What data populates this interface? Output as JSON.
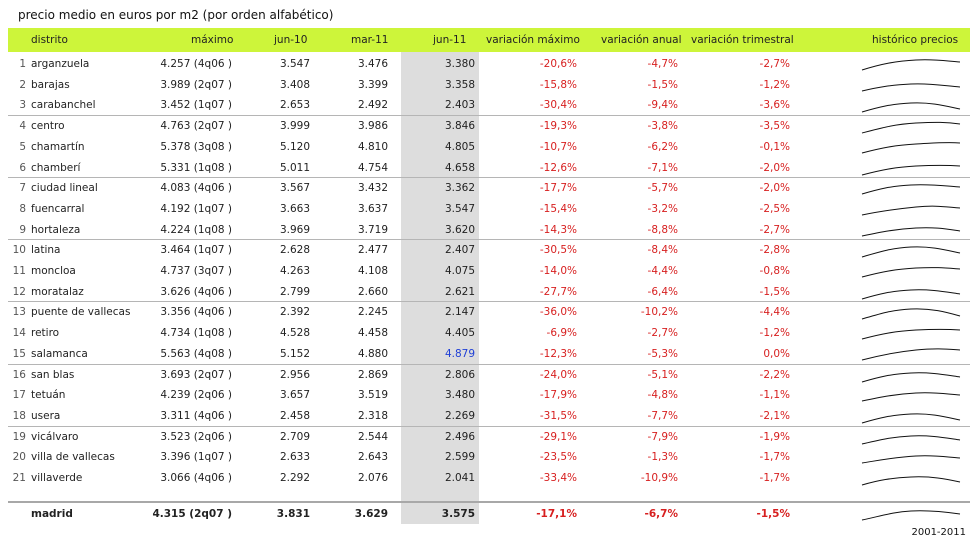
{
  "title": "precio medio en euros por m2 (por orden alfabético)",
  "header": {
    "distrito": "distrito",
    "maximo": "máximo",
    "jun10": "jun-10",
    "mar11": "mar-11",
    "jun11": "jun-11",
    "var_max": "variación máximo",
    "var_anual": "variación anual",
    "var_trim": "variación trimestral",
    "historico": "histórico precios"
  },
  "colors": {
    "header_bg": "#cdf53a",
    "negative": "#d71f1f",
    "highlight": "#1f3fd6",
    "band": "#dddddd"
  },
  "rows": [
    {
      "idx": "1",
      "name": "arganzuela",
      "max": "4.257 (4q06 )",
      "jun10": "3.547",
      "mar11": "3.476",
      "jun11": "3.380",
      "vmax": "-20,6%",
      "vanual": "-4,7%",
      "vtrim": "-2,7%"
    },
    {
      "idx": "2",
      "name": "barajas",
      "max": "3.989 (2q07 )",
      "jun10": "3.408",
      "mar11": "3.399",
      "jun11": "3.358",
      "vmax": "-15,8%",
      "vanual": "-1,5%",
      "vtrim": "-1,2%"
    },
    {
      "idx": "3",
      "name": "carabanchel",
      "max": "3.452 (1q07 )",
      "jun10": "2.653",
      "mar11": "2.492",
      "jun11": "2.403",
      "vmax": "-30,4%",
      "vanual": "-9,4%",
      "vtrim": "-3,6%"
    },
    {
      "idx": "4",
      "name": "centro",
      "max": "4.763 (2q07 )",
      "jun10": "3.999",
      "mar11": "3.986",
      "jun11": "3.846",
      "vmax": "-19,3%",
      "vanual": "-3,8%",
      "vtrim": "-3,5%"
    },
    {
      "idx": "5",
      "name": "chamartín",
      "max": "5.378 (3q08 )",
      "jun10": "5.120",
      "mar11": "4.810",
      "jun11": "4.805",
      "vmax": "-10,7%",
      "vanual": "-6,2%",
      "vtrim": "-0,1%"
    },
    {
      "idx": "6",
      "name": "chamberí",
      "max": "5.331 (1q08 )",
      "jun10": "5.011",
      "mar11": "4.754",
      "jun11": "4.658",
      "vmax": "-12,6%",
      "vanual": "-7,1%",
      "vtrim": "-2,0%"
    },
    {
      "idx": "7",
      "name": "ciudad lineal",
      "max": "4.083 (4q06 )",
      "jun10": "3.567",
      "mar11": "3.432",
      "jun11": "3.362",
      "vmax": "-17,7%",
      "vanual": "-5,7%",
      "vtrim": "-2,0%"
    },
    {
      "idx": "8",
      "name": "fuencarral",
      "max": "4.192 (1q07 )",
      "jun10": "3.663",
      "mar11": "3.637",
      "jun11": "3.547",
      "vmax": "-15,4%",
      "vanual": "-3,2%",
      "vtrim": "-2,5%"
    },
    {
      "idx": "9",
      "name": "hortaleza",
      "max": "4.224 (1q08 )",
      "jun10": "3.969",
      "mar11": "3.719",
      "jun11": "3.620",
      "vmax": "-14,3%",
      "vanual": "-8,8%",
      "vtrim": "-2,7%"
    },
    {
      "idx": "10",
      "name": "latina",
      "max": "3.464 (1q07 )",
      "jun10": "2.628",
      "mar11": "2.477",
      "jun11": "2.407",
      "vmax": "-30,5%",
      "vanual": "-8,4%",
      "vtrim": "-2,8%"
    },
    {
      "idx": "11",
      "name": "moncloa",
      "max": "4.737 (3q07 )",
      "jun10": "4.263",
      "mar11": "4.108",
      "jun11": "4.075",
      "vmax": "-14,0%",
      "vanual": "-4,4%",
      "vtrim": "-0,8%"
    },
    {
      "idx": "12",
      "name": "moratalaz",
      "max": "3.626 (4q06 )",
      "jun10": "2.799",
      "mar11": "2.660",
      "jun11": "2.621",
      "vmax": "-27,7%",
      "vanual": "-6,4%",
      "vtrim": "-1,5%"
    },
    {
      "idx": "13",
      "name": "puente de vallecas",
      "max": "3.356 (4q06 )",
      "jun10": "2.392",
      "mar11": "2.245",
      "jun11": "2.147",
      "vmax": "-36,0%",
      "vanual": "-10,2%",
      "vtrim": "-4,4%"
    },
    {
      "idx": "14",
      "name": "retiro",
      "max": "4.734 (1q08 )",
      "jun10": "4.528",
      "mar11": "4.458",
      "jun11": "4.405",
      "vmax": "-6,9%",
      "vanual": "-2,7%",
      "vtrim": "-1,2%"
    },
    {
      "idx": "15",
      "name": "salamanca",
      "max": "5.563 (4q08 )",
      "jun10": "5.152",
      "mar11": "4.880",
      "jun11": "4.879",
      "vmax": "-12,3%",
      "vanual": "-5,3%",
      "vtrim": "0,0%",
      "highlight": true
    },
    {
      "idx": "16",
      "name": "san blas",
      "max": "3.693 (2q07 )",
      "jun10": "2.956",
      "mar11": "2.869",
      "jun11": "2.806",
      "vmax": "-24,0%",
      "vanual": "-5,1%",
      "vtrim": "-2,2%"
    },
    {
      "idx": "17",
      "name": "tetuán",
      "max": "4.239 (2q06 )",
      "jun10": "3.657",
      "mar11": "3.519",
      "jun11": "3.480",
      "vmax": "-17,9%",
      "vanual": "-4,8%",
      "vtrim": "-1,1%"
    },
    {
      "idx": "18",
      "name": "usera",
      "max": "3.311 (4q06 )",
      "jun10": "2.458",
      "mar11": "2.318",
      "jun11": "2.269",
      "vmax": "-31,5%",
      "vanual": "-7,7%",
      "vtrim": "-2,1%"
    },
    {
      "idx": "19",
      "name": "vicálvaro",
      "max": "3.523 (2q06 )",
      "jun10": "2.709",
      "mar11": "2.544",
      "jun11": "2.496",
      "vmax": "-29,1%",
      "vanual": "-7,9%",
      "vtrim": "-1,9%"
    },
    {
      "idx": "20",
      "name": "villa de vallecas",
      "max": "3.396 (1q07 )",
      "jun10": "2.633",
      "mar11": "2.643",
      "jun11": "2.599",
      "vmax": "-23,5%",
      "vanual": "-1,3%",
      "vtrim": "-1,7%"
    },
    {
      "idx": "21",
      "name": "villaverde",
      "max": "3.066 (4q06 )",
      "jun10": "2.292",
      "mar11": "2.076",
      "jun11": "2.041",
      "vmax": "-33,4%",
      "vanual": "-10,9%",
      "vtrim": "-1,7%"
    }
  ],
  "total": {
    "name": "madrid",
    "max": "4.315 (2q07 )",
    "jun10": "3.831",
    "mar11": "3.629",
    "jun11": "3.575",
    "vmax": "-17,1%",
    "vanual": "-6,7%",
    "vtrim": "-1,5%"
  },
  "footer": "2001-2011"
}
